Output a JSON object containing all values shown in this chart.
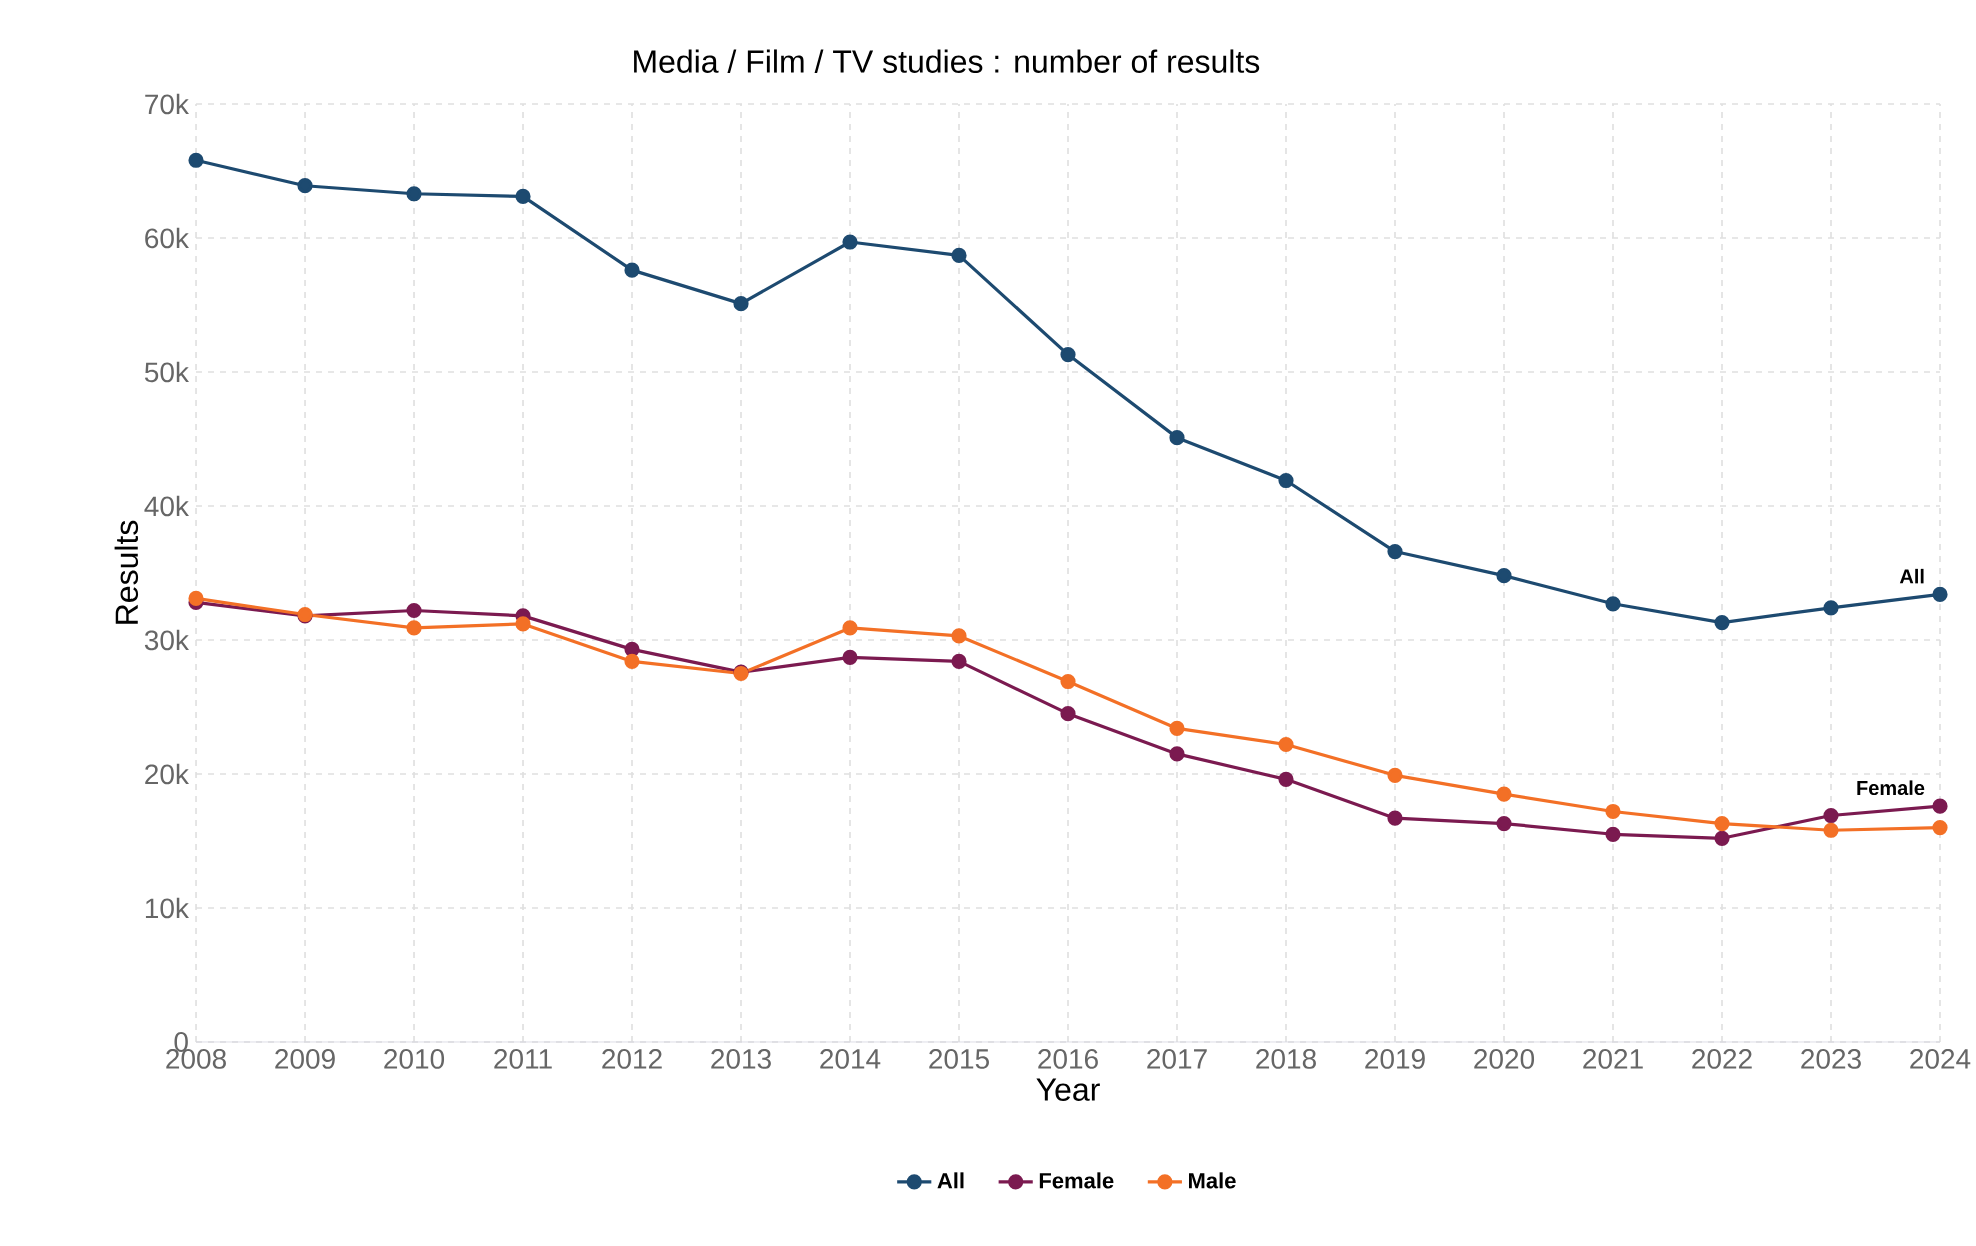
{
  "chart_data": {
    "type": "line",
    "title": "Media / Film / TV studies : number of results",
    "xlabel": "Year",
    "ylabel": "Results",
    "x": [
      2008,
      2009,
      2010,
      2011,
      2012,
      2013,
      2014,
      2015,
      2016,
      2017,
      2018,
      2019,
      2020,
      2021,
      2022,
      2023,
      2024
    ],
    "series": [
      {
        "name": "All",
        "color": "#1d4a70",
        "values": [
          65800,
          63900,
          63300,
          63100,
          57600,
          55100,
          59700,
          58700,
          51300,
          45100,
          41900,
          36600,
          34800,
          32700,
          31300,
          32400,
          33400
        ]
      },
      {
        "name": "Female",
        "color": "#7b1a50",
        "values": [
          32800,
          31800,
          32200,
          31800,
          29300,
          27600,
          28700,
          28400,
          24500,
          21500,
          19600,
          16700,
          16300,
          15500,
          15200,
          16900,
          17600
        ]
      },
      {
        "name": "Male",
        "color": "#f37026",
        "values": [
          33100,
          31900,
          30900,
          31200,
          28400,
          27500,
          30900,
          30300,
          26900,
          23400,
          22200,
          19900,
          18500,
          17200,
          16300,
          15800,
          16000
        ]
      }
    ],
    "annotations": [
      {
        "text": "All",
        "x": 2024,
        "y": 33400
      },
      {
        "text": "Female",
        "x": 2024,
        "y": 17600
      }
    ],
    "xlim": [
      2008,
      2024
    ],
    "xticks": [
      2008,
      2009,
      2010,
      2011,
      2012,
      2013,
      2014,
      2015,
      2016,
      2017,
      2018,
      2019,
      2020,
      2021,
      2022,
      2023,
      2024
    ],
    "ylim": [
      0,
      70000
    ],
    "yticks": [
      0,
      {
        "value": 10000,
        "label": "10k"
      },
      {
        "value": 20000,
        "label": "20k"
      },
      {
        "value": 30000,
        "label": "30k"
      },
      {
        "value": 40000,
        "label": "40k"
      },
      {
        "value": 50000,
        "label": "50k"
      },
      {
        "value": 60000,
        "label": "60k"
      },
      {
        "value": 70000,
        "label": "70k"
      }
    ],
    "grid": true,
    "legend": "bottom",
    "marker": "circle",
    "line_style": "solid"
  }
}
